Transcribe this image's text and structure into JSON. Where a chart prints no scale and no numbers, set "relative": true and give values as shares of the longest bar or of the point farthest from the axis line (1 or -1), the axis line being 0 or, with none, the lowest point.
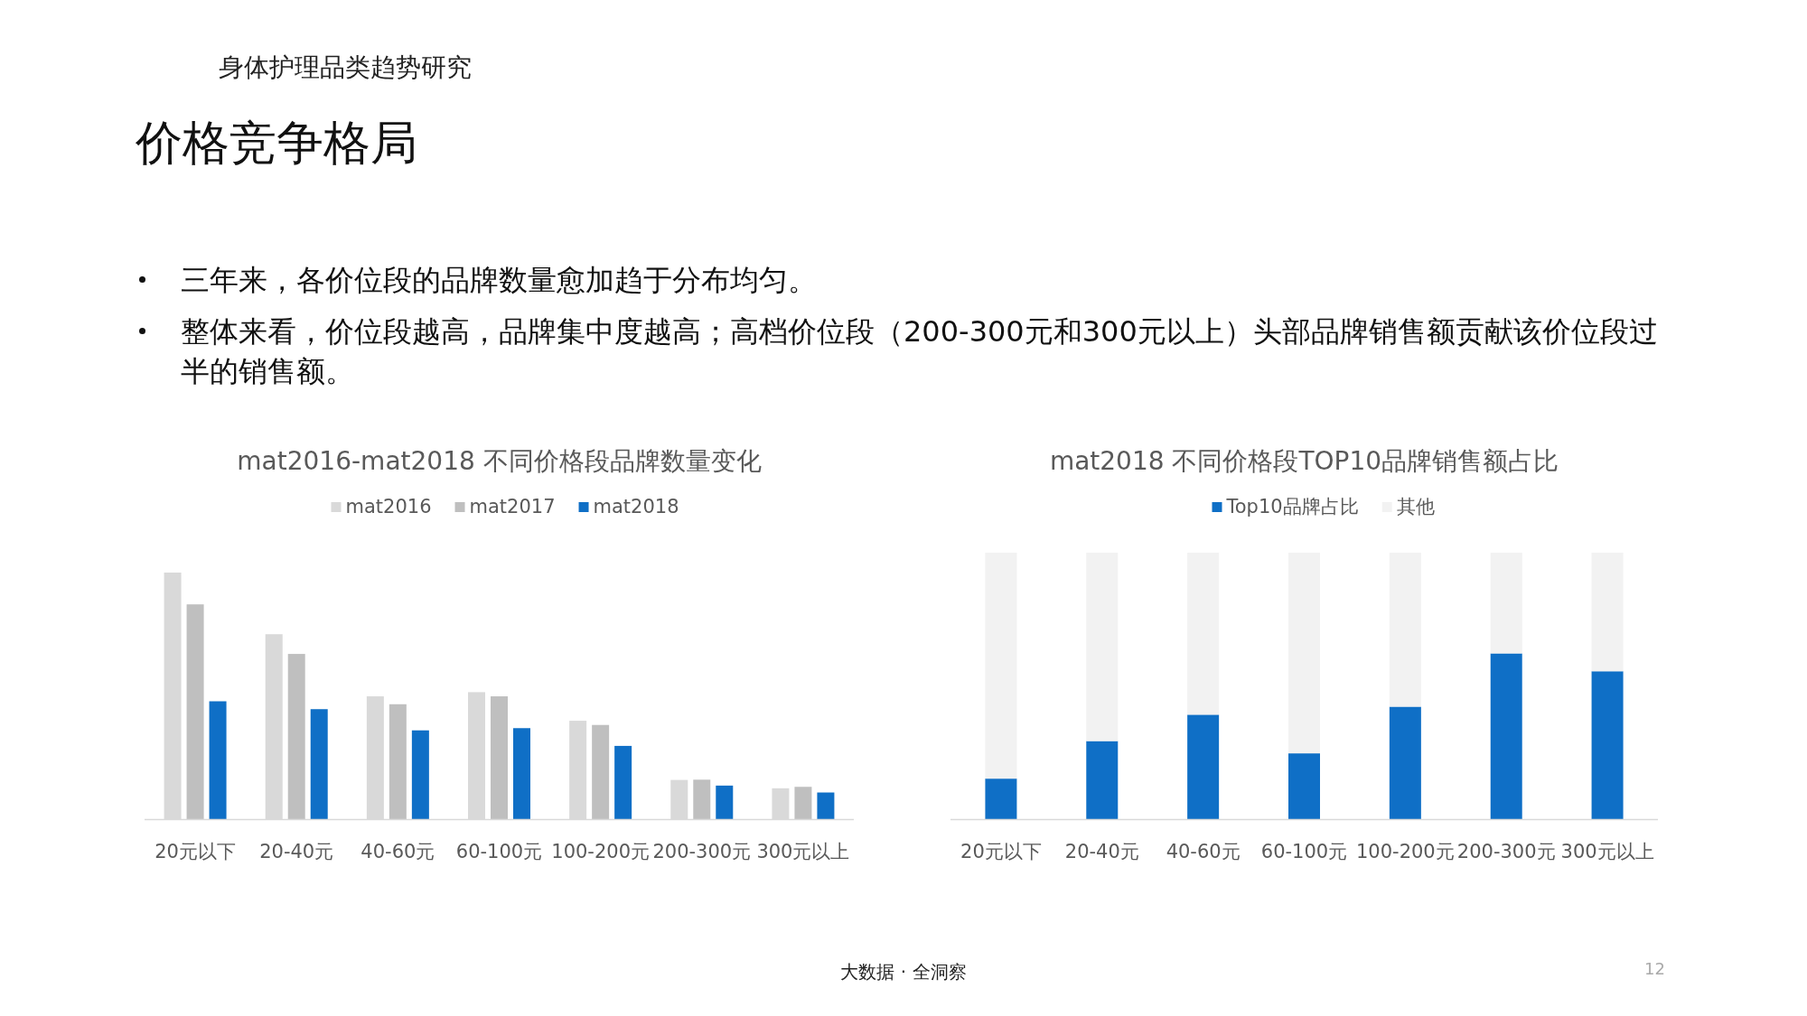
{
  "chart_data": [
    {
      "type": "other",
      "title": "价格竞争格局",
      "subtitle": "身体护理品类趋势研究",
      "annotations": [
        "三年来，各价位段的品牌数量愈加趋于分布均匀。",
        "整体来看，价位段越高，品牌集中度越高；高档价位段（200-300元和300元以上）头部品牌销售额贡献该价位段过半的销售额。",
        "大数据 · 全洞察",
        "12"
      ]
    },
    {
      "type": "bar",
      "title": "mat2016-mat2018 不同价格段品牌数量变化",
      "relative": true,
      "legend": "top",
      "categories": [
        "20元以下",
        "20-40元",
        "40-60元",
        "60-100元",
        "100-200元",
        "200-300元",
        "300元以上"
      ],
      "series": [
        {
          "name": "mat2016",
          "color": "#d9d9d9",
          "values": [
            1,
            0.75,
            0.498,
            0.515,
            0.399,
            0.159,
            0.125
          ]
        },
        {
          "name": "mat2017",
          "color": "#bfbfbf",
          "values": [
            0.871,
            0.67,
            0.466,
            0.498,
            0.382,
            0.16,
            0.131
          ]
        },
        {
          "name": "mat2018",
          "color": "#0f6fc6",
          "values": [
            0.478,
            0.446,
            0.36,
            0.369,
            0.297,
            0.136,
            0.108
          ]
        }
      ]
    },
    {
      "type": "bar",
      "title": "mat2018 不同价格段TOP10品牌销售额占比",
      "relative": true,
      "stacked": true,
      "legend": "top",
      "categories": [
        "20元以下",
        "20-40元",
        "40-60元",
        "60-100元",
        "100-200元",
        "200-300元",
        "300元以上"
      ],
      "series": [
        {
          "name": "Top10品牌占比",
          "color": "#0f6fc6",
          "values": [
            0.152,
            0.293,
            0.392,
            0.247,
            0.422,
            0.622,
            0.555
          ]
        },
        {
          "name": "其他",
          "color": "#f2f2f2",
          "values": [
            0.848,
            0.707,
            0.608,
            0.753,
            0.578,
            0.378,
            0.445
          ]
        }
      ]
    }
  ]
}
